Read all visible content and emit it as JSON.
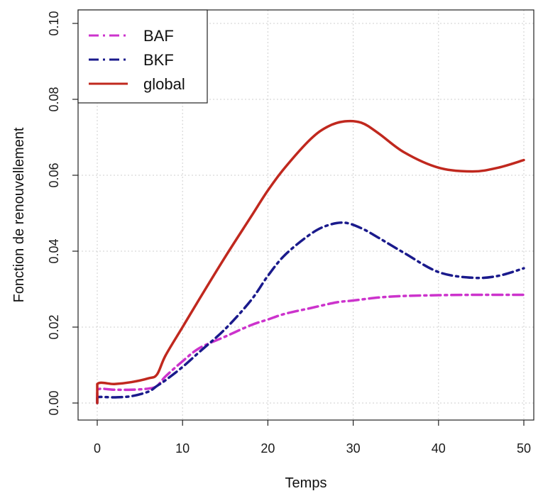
{
  "chart_data": {
    "type": "line",
    "title": "",
    "xlabel": "Temps",
    "ylabel": "Fonction de renouvellement",
    "xlim": [
      0,
      50
    ],
    "ylim": [
      0,
      0.1
    ],
    "grid": true,
    "legend_position": "top-left",
    "x_ticks": [
      0,
      10,
      20,
      30,
      40,
      50
    ],
    "x_tick_labels": [
      "0",
      "10",
      "20",
      "30",
      "40",
      "50"
    ],
    "y_ticks": [
      0,
      0.02,
      0.04,
      0.06,
      0.08,
      0.1
    ],
    "y_tick_labels": [
      "0.00",
      "0.02",
      "0.04",
      "0.06",
      "0.08",
      "0.10"
    ],
    "series": [
      {
        "name": "BAF",
        "color": "#cc33cc",
        "style": "dashdot",
        "x": [
          0,
          0,
          2,
          4,
          6,
          7,
          8,
          10,
          12,
          15,
          18,
          20,
          22,
          25,
          28,
          30,
          33,
          36,
          40,
          44,
          47,
          50
        ],
        "y": [
          0,
          0.0035,
          0.0035,
          0.0035,
          0.0038,
          0.0045,
          0.007,
          0.011,
          0.0145,
          0.0175,
          0.0205,
          0.022,
          0.0235,
          0.025,
          0.0265,
          0.027,
          0.0278,
          0.0282,
          0.0284,
          0.0285,
          0.0285,
          0.0285
        ]
      },
      {
        "name": "BKF",
        "color": "#1a1a8c",
        "style": "dashdot",
        "x": [
          0,
          0,
          2,
          4,
          6,
          7,
          8,
          10,
          12,
          15,
          18,
          20,
          22,
          25,
          27,
          29,
          31,
          33,
          36,
          40,
          44,
          47,
          50
        ],
        "y": [
          0,
          0.0015,
          0.0015,
          0.0018,
          0.003,
          0.0045,
          0.006,
          0.0095,
          0.0135,
          0.0195,
          0.027,
          0.0335,
          0.039,
          0.0445,
          0.0468,
          0.0475,
          0.046,
          0.0435,
          0.0395,
          0.0345,
          0.033,
          0.0335,
          0.0355
        ]
      },
      {
        "name": "global",
        "color": "#c0281e",
        "style": "solid",
        "x": [
          0,
          0,
          2,
          4,
          6,
          7,
          8,
          10,
          12,
          15,
          18,
          20,
          22,
          25,
          27,
          29,
          31,
          33,
          36,
          40,
          44,
          47,
          50
        ],
        "y": [
          0,
          0.005,
          0.005,
          0.0055,
          0.0065,
          0.0075,
          0.0125,
          0.02,
          0.0275,
          0.0385,
          0.049,
          0.056,
          0.062,
          0.0695,
          0.0728,
          0.0742,
          0.0738,
          0.071,
          0.066,
          0.062,
          0.061,
          0.062,
          0.064
        ]
      }
    ]
  }
}
